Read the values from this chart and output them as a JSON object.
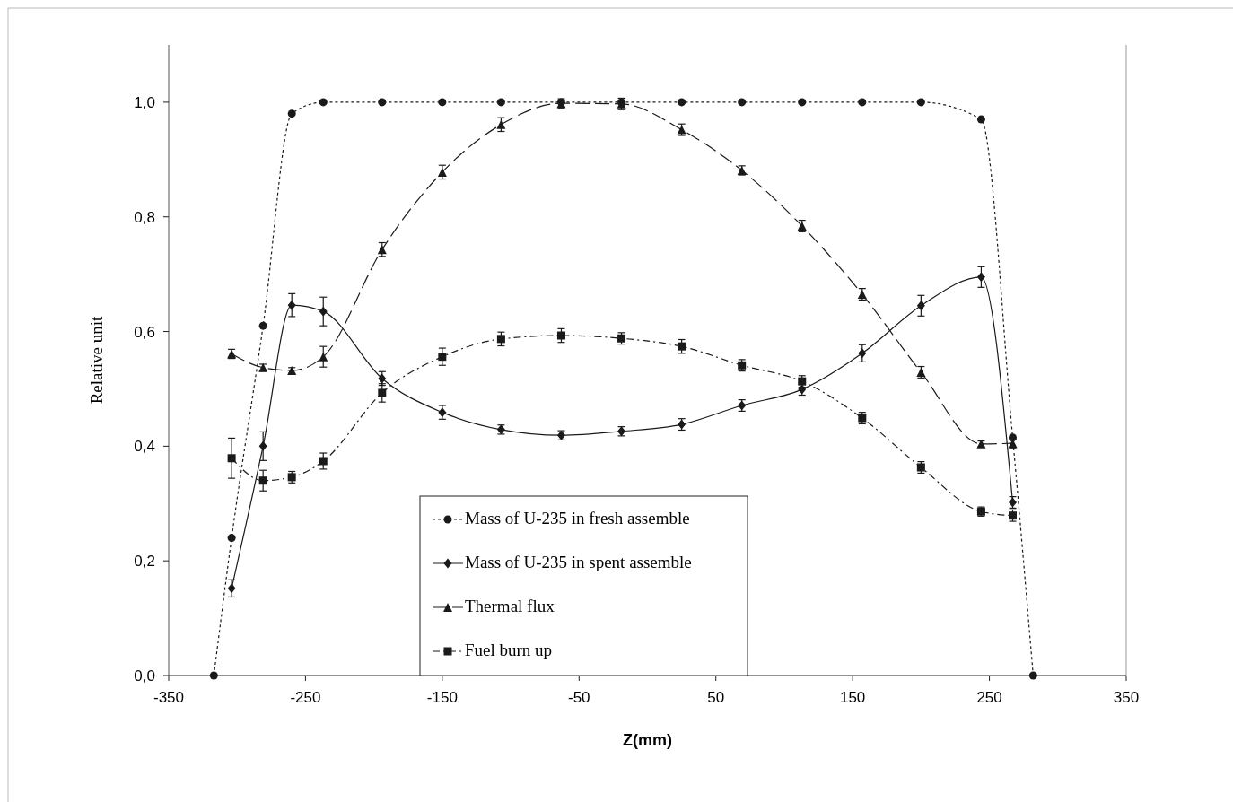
{
  "chart_data": {
    "type": "line",
    "xlabel": "Z(mm)",
    "ylabel": "Relative unit",
    "xlim": [
      -350,
      350
    ],
    "xticks": [
      -350,
      -250,
      -150,
      -50,
      50,
      150,
      250,
      350
    ],
    "ylim": [
      0,
      1.1
    ],
    "yticks": [
      {
        "value": 0,
        "label": "0,0"
      },
      {
        "value": 0.2,
        "label": "0,2"
      },
      {
        "value": 0.4,
        "label": "0,4"
      },
      {
        "value": 0.6,
        "label": "0,6"
      },
      {
        "value": 0.8,
        "label": "0,8"
      },
      {
        "value": 1,
        "label": "1,0"
      }
    ],
    "legend": "bottom",
    "grid": false,
    "series": [
      {
        "name": "Mass of U-235 in fresh assemble",
        "color": "#1a1a1a",
        "marker": "circle",
        "line_style": "dotted",
        "x": [
          -317,
          -304,
          -281,
          -260,
          -237,
          -194,
          -150,
          -107,
          -63,
          -19,
          25,
          69,
          113,
          157,
          200,
          244,
          267,
          282
        ],
        "values": [
          0,
          0.24,
          0.61,
          0.98,
          1.0,
          1.0,
          1.0,
          1.0,
          1.0,
          1.0,
          1.0,
          1.0,
          1.0,
          1.0,
          1.0,
          0.97,
          0.415,
          0
        ]
      },
      {
        "name": "Mass of U-235 in spent assemble",
        "color": "#1a1a1a",
        "marker": "diamond",
        "line_style": "solid",
        "x": [
          -304,
          -281,
          -260,
          -237,
          -194,
          -150,
          -107,
          -63,
          -19,
          25,
          69,
          113,
          157,
          200,
          244,
          267
        ],
        "values": [
          0.152,
          0.4,
          0.646,
          0.635,
          0.518,
          0.459,
          0.429,
          0.419,
          0.426,
          0.438,
          0.471,
          0.499,
          0.562,
          0.645,
          0.695,
          0.302
        ],
        "errors": [
          0.015,
          0.025,
          0.02,
          0.025,
          0.012,
          0.012,
          0.008,
          0.008,
          0.008,
          0.01,
          0.01,
          0.01,
          0.015,
          0.018,
          0.018,
          0.01
        ]
      },
      {
        "name": "Thermal flux",
        "color": "#1a1a1a",
        "marker": "triangle",
        "line_style": "dashed",
        "x": [
          -304,
          -281,
          -260,
          -237,
          -194,
          -150,
          -107,
          -63,
          -19,
          25,
          69,
          113,
          157,
          200,
          244,
          267
        ],
        "values": [
          0.561,
          0.537,
          0.532,
          0.556,
          0.743,
          0.878,
          0.961,
          0.998,
          0.997,
          0.952,
          0.881,
          0.784,
          0.665,
          0.529,
          0.404,
          0.405
        ],
        "errors": [
          0.008,
          0.006,
          0.005,
          0.018,
          0.012,
          0.012,
          0.012,
          0.008,
          0.01,
          0.01,
          0.008,
          0.01,
          0.01,
          0.01,
          0.005,
          0.008
        ]
      },
      {
        "name": "Fuel burn up",
        "color": "#1a1a1a",
        "marker": "square",
        "line_style": "dashdot",
        "x": [
          -304,
          -281,
          -260,
          -237,
          -194,
          -150,
          -107,
          -63,
          -19,
          25,
          69,
          113,
          157,
          200,
          244,
          267
        ],
        "values": [
          0.379,
          0.34,
          0.346,
          0.374,
          0.493,
          0.556,
          0.587,
          0.593,
          0.588,
          0.574,
          0.541,
          0.513,
          0.449,
          0.363,
          0.286,
          0.279
        ],
        "errors": [
          0.035,
          0.018,
          0.01,
          0.014,
          0.016,
          0.015,
          0.012,
          0.012,
          0.01,
          0.012,
          0.01,
          0.01,
          0.01,
          0.01,
          0.008,
          0.01
        ]
      }
    ]
  }
}
